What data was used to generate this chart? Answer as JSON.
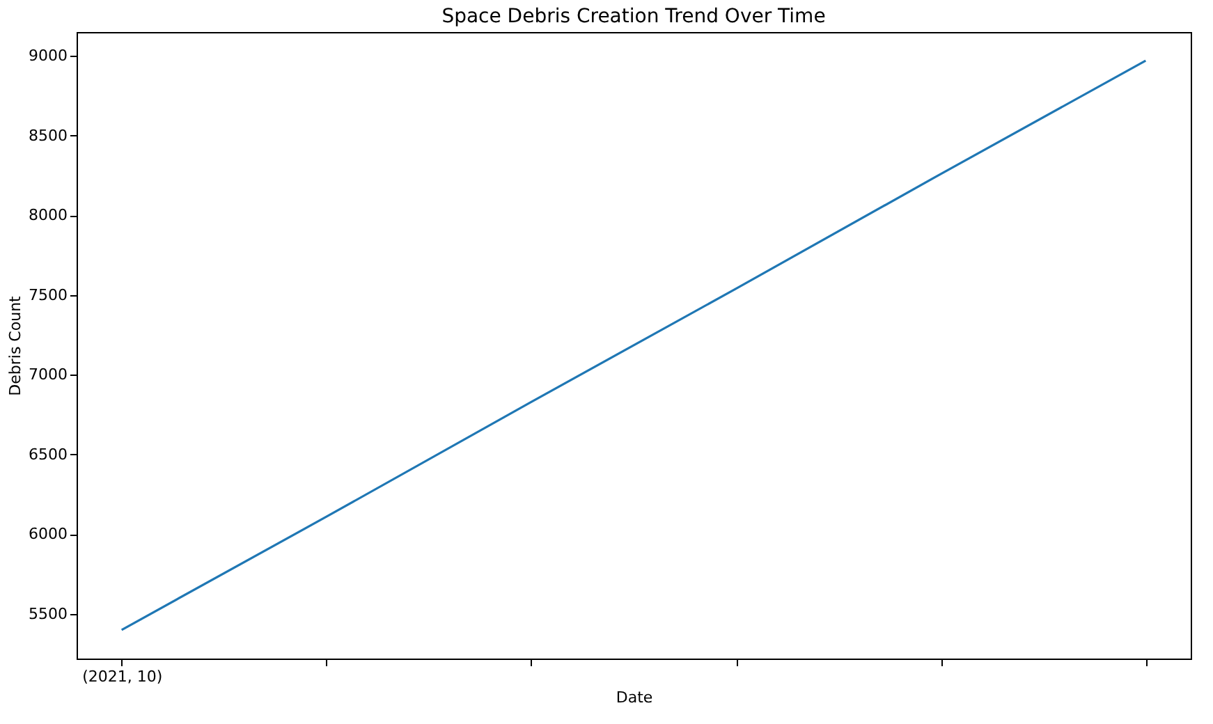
{
  "chart_data": {
    "type": "line",
    "title": "Space Debris Creation Trend Over Time",
    "xlabel": "Date",
    "ylabel": "Debris Count",
    "categories": [
      "(2021, 10)",
      null,
      null,
      null,
      null,
      null
    ],
    "series": [
      {
        "color": "#1f77b4",
        "values": [
          5400,
          6110,
          6830,
          7540,
          8260,
          8970
        ]
      }
    ],
    "ylim": [
      5220,
      9150
    ],
    "yticks": [
      5500,
      6000,
      6500,
      7000,
      7500,
      8000,
      8500,
      9000
    ],
    "grid": false,
    "marker": "none",
    "line_style": "solid"
  }
}
